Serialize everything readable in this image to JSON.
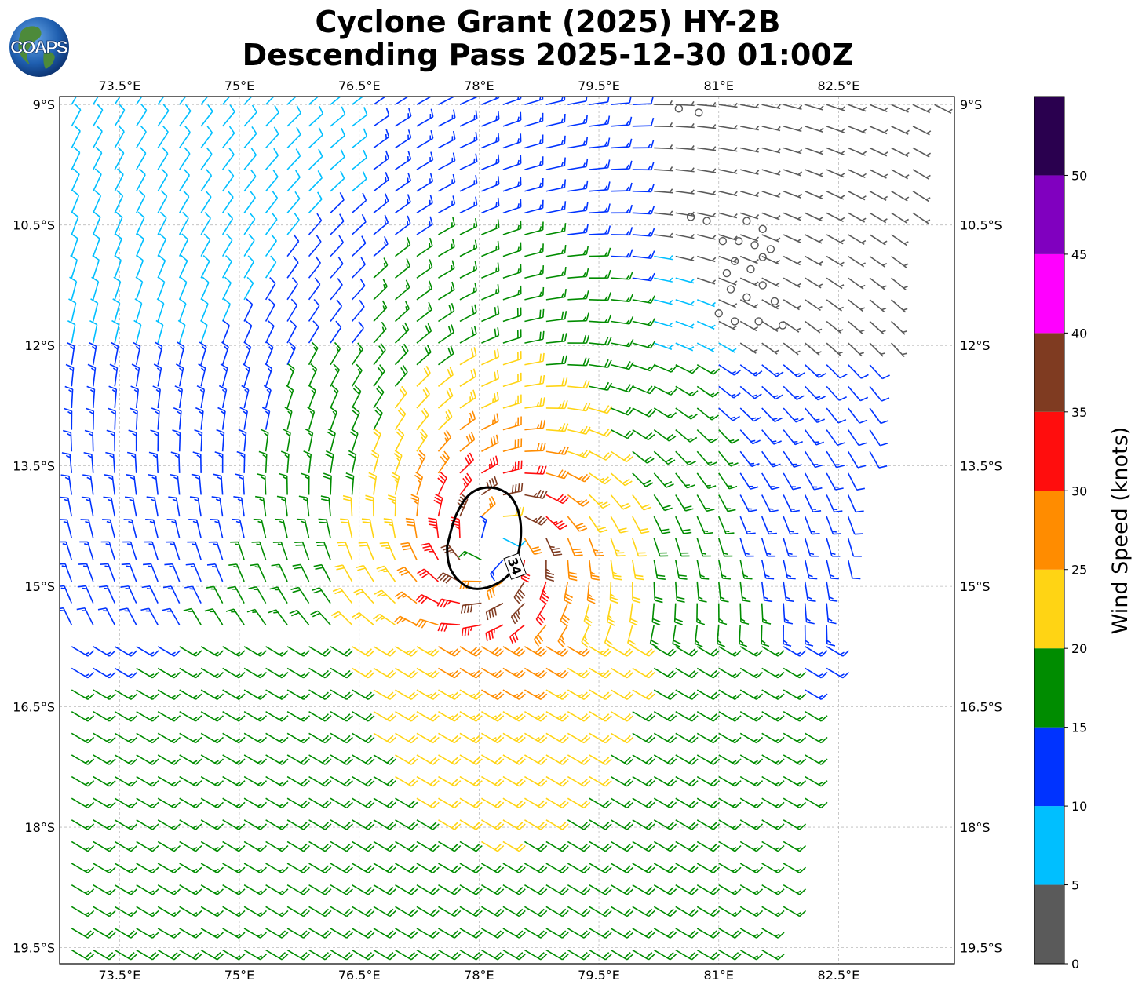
{
  "title": {
    "line1": "Cyclone Grant (2025) HY-2B",
    "line2": "Descending Pass 2025-12-30 01:00Z"
  },
  "logo": {
    "text": "COAPS"
  },
  "map": {
    "lon_range": [
      72.75,
      83.95
    ],
    "lat_range": [
      -19.7,
      -8.9
    ],
    "lon_ticks": [
      "73.5°E",
      "75°E",
      "76.5°E",
      "78°E",
      "79.5°E",
      "81°E",
      "82.5°E"
    ],
    "lon_tick_values": [
      73.5,
      75,
      76.5,
      78,
      79.5,
      81,
      82.5
    ],
    "lat_ticks": [
      "9°S",
      "10.5°S",
      "12°S",
      "13.5°S",
      "15°S",
      "16.5°S",
      "18°S",
      "19.5°S"
    ],
    "lat_tick_values": [
      -9,
      -10.5,
      -12,
      -13.5,
      -15,
      -16.5,
      -18,
      -19.5
    ],
    "gridlines": true,
    "storm_center": {
      "lon": 78.2,
      "lat": -14.5
    },
    "swath_corners": [
      [
        72.75,
        -8.9
      ],
      [
        83.75,
        -8.9
      ],
      [
        81.7,
        -19.7
      ],
      [
        72.75,
        -19.7
      ]
    ],
    "contour_34kt": {
      "label": "34",
      "color": "#000000",
      "points": [
        [
          77.6,
          -14.5
        ],
        [
          77.7,
          -14.1
        ],
        [
          77.9,
          -13.8
        ],
        [
          78.2,
          -13.75
        ],
        [
          78.45,
          -13.9
        ],
        [
          78.55,
          -14.3
        ],
        [
          78.45,
          -14.8
        ],
        [
          78.2,
          -15.0
        ],
        [
          77.9,
          -15.05
        ],
        [
          77.7,
          -14.9
        ],
        [
          77.6,
          -14.7
        ]
      ]
    },
    "calm_circles": [
      [
        80.5,
        -9.05
      ],
      [
        80.75,
        -9.1
      ],
      [
        80.65,
        -10.4
      ],
      [
        80.85,
        -10.45
      ],
      [
        81.05,
        -10.7
      ],
      [
        81.25,
        -10.7
      ],
      [
        81.45,
        -10.75
      ],
      [
        81.65,
        -10.8
      ],
      [
        81.2,
        -10.95
      ],
      [
        81.4,
        -11.05
      ],
      [
        81.55,
        -10.9
      ],
      [
        81.1,
        -11.1
      ],
      [
        81.15,
        -11.3
      ],
      [
        81.35,
        -11.4
      ],
      [
        81.55,
        -11.25
      ],
      [
        81.7,
        -11.45
      ],
      [
        81.0,
        -11.6
      ],
      [
        81.2,
        -11.7
      ],
      [
        81.5,
        -11.7
      ],
      [
        81.8,
        -11.75
      ],
      [
        81.35,
        -10.45
      ],
      [
        81.55,
        -10.55
      ]
    ]
  },
  "colorbar": {
    "label": "Wind Speed (knots)",
    "ticks": [
      "0",
      "5",
      "10",
      "15",
      "20",
      "25",
      "30",
      "35",
      "40",
      "45",
      "50"
    ],
    "tick_values": [
      0,
      5,
      10,
      15,
      20,
      25,
      30,
      35,
      40,
      45,
      50
    ],
    "max": 55,
    "bins": [
      {
        "from": 0,
        "to": 5,
        "color": "#5a5a5a"
      },
      {
        "from": 5,
        "to": 10,
        "color": "#00bfff"
      },
      {
        "from": 10,
        "to": 15,
        "color": "#0033ff"
      },
      {
        "from": 15,
        "to": 20,
        "color": "#008c00"
      },
      {
        "from": 20,
        "to": 25,
        "color": "#ffd414"
      },
      {
        "from": 25,
        "to": 30,
        "color": "#ff8c00"
      },
      {
        "from": 30,
        "to": 35,
        "color": "#ff0d0d"
      },
      {
        "from": 35,
        "to": 40,
        "color": "#7f3b21"
      },
      {
        "from": 40,
        "to": 45,
        "color": "#ff00ff"
      },
      {
        "from": 45,
        "to": 50,
        "color": "#8000bf"
      },
      {
        "from": 50,
        "to": 55,
        "color": "#2a004f"
      }
    ]
  }
}
